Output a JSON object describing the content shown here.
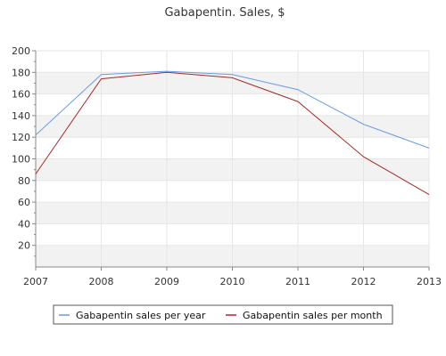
{
  "chart_data": {
    "type": "line",
    "title": "Gabapentin. Sales, $",
    "xlabel": "",
    "ylabel": "",
    "x": [
      "2007",
      "2008",
      "2009",
      "2010",
      "2011",
      "2012",
      "2013"
    ],
    "ylim": [
      0,
      200
    ],
    "yticks": [
      "20",
      "40",
      "60",
      "80",
      "100",
      "120",
      "140",
      "160",
      "180",
      "200"
    ],
    "grid": "horizontal alternating bands",
    "legend_position": "bottom",
    "series": [
      {
        "name": "Gabapentin sales per year",
        "color": "#6a9be0",
        "values": [
          122,
          178,
          181,
          178,
          164,
          132,
          110
        ]
      },
      {
        "name": "Gabapentin sales per month",
        "color": "#a52a2a",
        "values": [
          86,
          174,
          180,
          175,
          153,
          102,
          67
        ]
      }
    ]
  }
}
